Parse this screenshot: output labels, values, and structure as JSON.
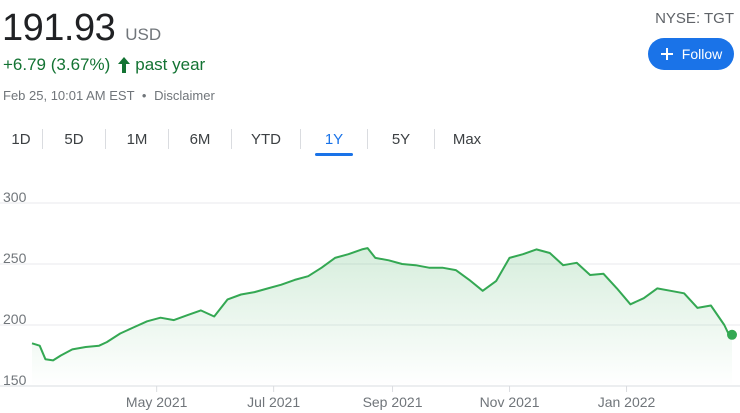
{
  "quote": {
    "price": "191.93",
    "currency": "USD",
    "change": "+6.79 (3.67%)",
    "period": "past year",
    "timestamp": "Feb 25, 10:01 AM EST",
    "separator": "•",
    "disclaimer": "Disclaimer",
    "ticker": "NYSE: TGT",
    "follow_label": "Follow",
    "up_icon": "arrow-up-icon",
    "colors": {
      "positive": "#137333",
      "line": "#34a853",
      "accent": "#1a73e8"
    }
  },
  "tabs": {
    "active": "1Y",
    "items": [
      {
        "label": "1D"
      },
      {
        "label": "5D"
      },
      {
        "label": "1M"
      },
      {
        "label": "6M"
      },
      {
        "label": "YTD"
      },
      {
        "label": "1Y"
      },
      {
        "label": "5Y"
      },
      {
        "label": "Max"
      }
    ]
  },
  "chart_data": {
    "type": "area",
    "title": "",
    "xlabel": "",
    "ylabel": "",
    "ylim": [
      150,
      300
    ],
    "yticks": [
      150,
      200,
      250,
      300
    ],
    "xtick_labels": [
      "May 2021",
      "Jul 2021",
      "Sep 2021",
      "Nov 2021",
      "Jan 2022"
    ],
    "xtick_dates": [
      "2021-05-01",
      "2021-07-01",
      "2021-09-01",
      "2021-11-01",
      "2022-01-01"
    ],
    "x_range": [
      "2021-02-25",
      "2022-02-25"
    ],
    "grid": true,
    "legend": "none",
    "x": [
      "2021-02-25",
      "2021-03-01",
      "2021-03-04",
      "2021-03-08",
      "2021-03-12",
      "2021-03-18",
      "2021-03-25",
      "2021-04-01",
      "2021-04-05",
      "2021-04-12",
      "2021-04-19",
      "2021-04-26",
      "2021-05-03",
      "2021-05-10",
      "2021-05-17",
      "2021-05-24",
      "2021-05-31",
      "2021-06-07",
      "2021-06-14",
      "2021-06-21",
      "2021-06-28",
      "2021-07-05",
      "2021-07-12",
      "2021-07-19",
      "2021-07-26",
      "2021-08-02",
      "2021-08-09",
      "2021-08-16",
      "2021-08-19",
      "2021-08-23",
      "2021-08-30",
      "2021-09-06",
      "2021-09-13",
      "2021-09-20",
      "2021-09-27",
      "2021-10-04",
      "2021-10-11",
      "2021-10-18",
      "2021-10-25",
      "2021-11-01",
      "2021-11-08",
      "2021-11-15",
      "2021-11-22",
      "2021-11-29",
      "2021-12-06",
      "2021-12-13",
      "2021-12-20",
      "2021-12-27",
      "2022-01-03",
      "2022-01-10",
      "2022-01-17",
      "2022-01-24",
      "2022-01-31",
      "2022-02-07",
      "2022-02-14",
      "2022-02-21",
      "2022-02-24",
      "2022-02-25"
    ],
    "series": [
      {
        "values": [
          185,
          183,
          172,
          171,
          175,
          180,
          182,
          183,
          186,
          193,
          198,
          203,
          206,
          204,
          208,
          212,
          207,
          221,
          225,
          227,
          230,
          233,
          237,
          240,
          247,
          255,
          258,
          262,
          263,
          255,
          253,
          250,
          249,
          247,
          247,
          245,
          237,
          228,
          236,
          255,
          258,
          262,
          259,
          249,
          251,
          241,
          242,
          230,
          217,
          222,
          230,
          228,
          226,
          214,
          216,
          200,
          190,
          192
        ]
      }
    ]
  }
}
